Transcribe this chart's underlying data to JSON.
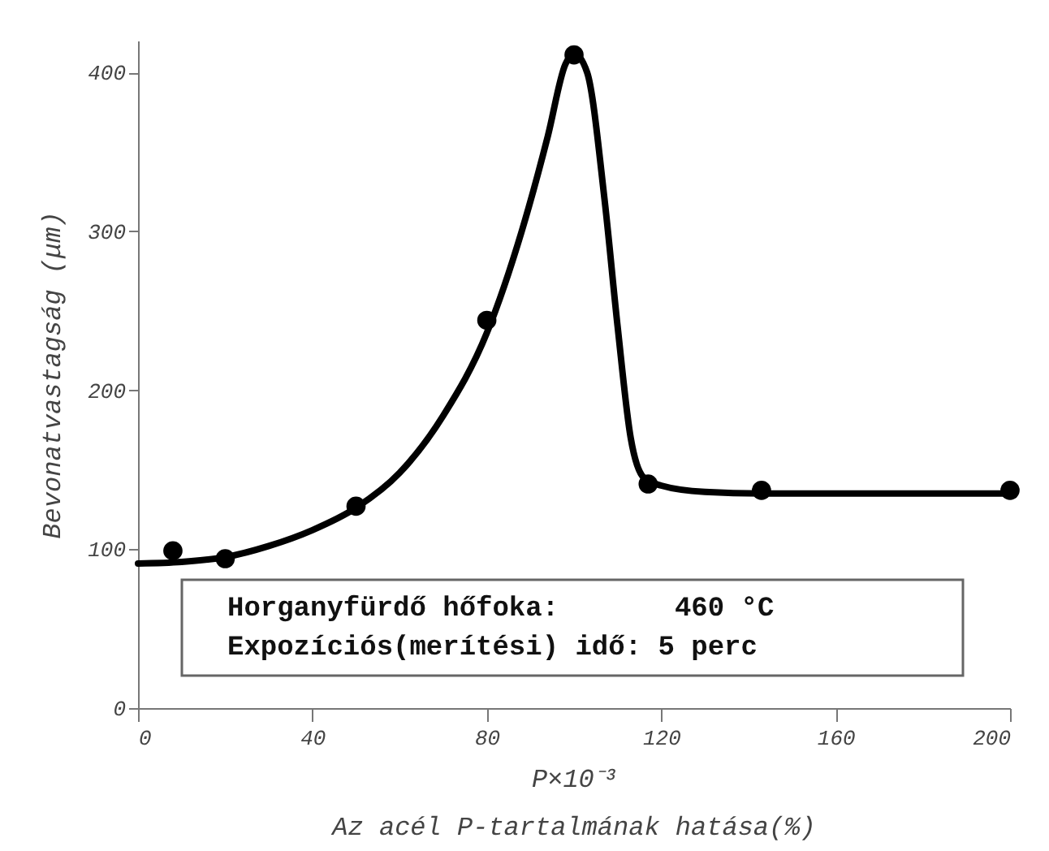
{
  "chart_data": {
    "type": "line",
    "title": "Az acél P-tartalmának hatása(%)",
    "xlabel": "P×10⁻³",
    "ylabel": "Bevonatvastagság (μm)",
    "xlim": [
      0,
      200
    ],
    "xticks": [
      0,
      40,
      80,
      120,
      160,
      200
    ],
    "ylim": [
      0,
      420
    ],
    "yticks": [
      0,
      100,
      200,
      300,
      400
    ],
    "grid": false,
    "series": [
      {
        "color": "#000000",
        "marker": "none",
        "line_style": "solid",
        "x": [
          0,
          10,
          20,
          30,
          40,
          50,
          60,
          70,
          80,
          88,
          94,
          98,
          100,
          103,
          107,
          110,
          113,
          116,
          120,
          130,
          143,
          160,
          200
        ],
        "values": [
          91,
          92,
          95,
          102,
          112,
          126,
          148,
          184,
          236,
          300,
          360,
          405,
          412,
          400,
          320,
          240,
          170,
          145,
          140,
          136,
          135,
          135,
          135
        ]
      },
      {
        "type": "scatter",
        "color": "#000000",
        "marker": "circle",
        "x": [
          8,
          20,
          50,
          80,
          100,
          117,
          143,
          200
        ],
        "values": [
          99,
          94,
          127,
          244,
          411,
          141,
          137,
          137
        ]
      }
    ],
    "annotations": [
      "Horganyfürdő hőfoka:       460 °C",
      "Expozíciós(merítési) idő: 5 perc"
    ]
  }
}
